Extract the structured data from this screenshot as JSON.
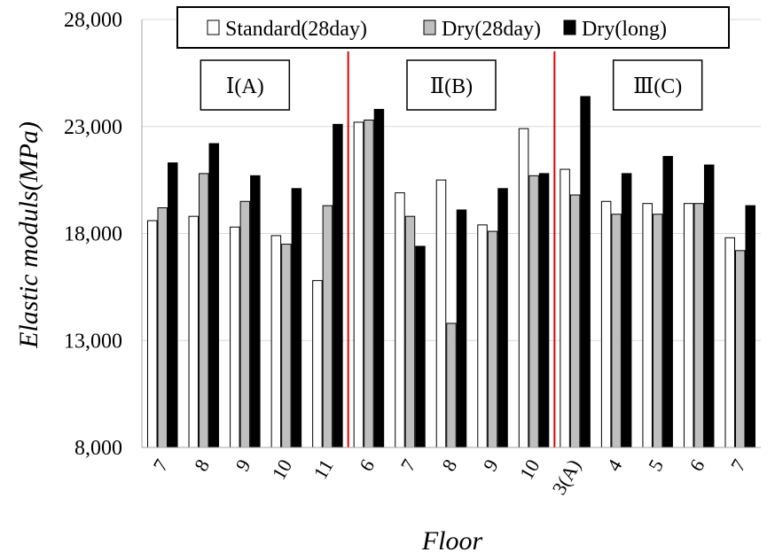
{
  "chart_data": {
    "type": "bar",
    "title": "",
    "xlabel": "Floor",
    "ylabel": "Elastic moduls(MPa)",
    "ylim": [
      8000,
      28000
    ],
    "yticks": [
      {
        "value": 8000,
        "label": "8,000"
      },
      {
        "value": 13000,
        "label": "13,000"
      },
      {
        "value": 18000,
        "label": "18,000"
      },
      {
        "value": 23000,
        "label": "23,000"
      },
      {
        "value": 28000,
        "label": "28,000"
      }
    ],
    "grid": true,
    "legend_position": "top",
    "categories": [
      "7",
      "8",
      "9",
      "10",
      "11",
      "6",
      "7",
      "8",
      "9",
      "10",
      "3(A)",
      "4",
      "5",
      "6",
      "7"
    ],
    "groups": [
      {
        "label": "Ⅰ(A)",
        "start": 0,
        "end": 4
      },
      {
        "label": "Ⅱ(B)",
        "start": 5,
        "end": 9
      },
      {
        "label": "Ⅲ(C)",
        "start": 10,
        "end": 14
      }
    ],
    "separators_after": [
      4,
      9
    ],
    "series": [
      {
        "name": "Standard(28day)",
        "color": "#ffffff",
        "values": [
          18600,
          18800,
          18300,
          17900,
          15800,
          23200,
          19900,
          20500,
          18400,
          22900,
          21000,
          19500,
          19400,
          19400,
          17800
        ]
      },
      {
        "name": "Dry(28day)",
        "color": "#bfbfbf",
        "values": [
          19200,
          20800,
          19500,
          17500,
          19300,
          23300,
          18800,
          13800,
          18100,
          20700,
          19800,
          18900,
          18900,
          19400,
          17200
        ]
      },
      {
        "name": "Dry(long)",
        "color": "#000000",
        "values": [
          21300,
          22200,
          20700,
          20100,
          23100,
          23800,
          17400,
          19100,
          20100,
          20800,
          24400,
          20800,
          21600,
          21200,
          19300
        ]
      }
    ]
  }
}
